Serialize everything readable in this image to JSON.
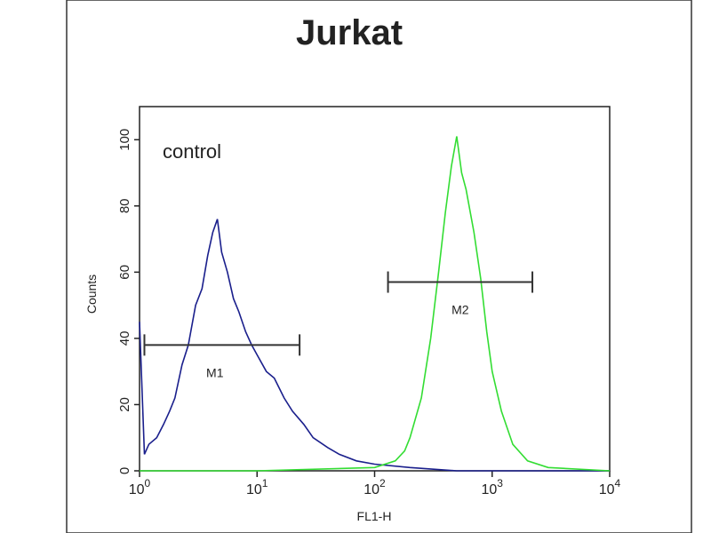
{
  "chart_data": {
    "type": "histogram-overlay",
    "title": "Jurkat",
    "annotation": "control",
    "x_label": "FL1-H",
    "y_label": "Counts",
    "xscale": "log",
    "xlim": [
      1,
      10000
    ],
    "ylim": [
      0,
      110
    ],
    "xticks": [
      {
        "value": 1,
        "label": "10",
        "exponent": "0"
      },
      {
        "value": 10,
        "label": "10",
        "exponent": "1"
      },
      {
        "value": 100,
        "label": "10",
        "exponent": "2"
      },
      {
        "value": 1000,
        "label": "10",
        "exponent": "3"
      },
      {
        "value": 10000,
        "label": "10",
        "exponent": "4"
      }
    ],
    "yticks": [
      0,
      20,
      40,
      60,
      80,
      100
    ],
    "series": [
      {
        "color": "#1a1f8c",
        "x": [
          1,
          1.1,
          1.2,
          1.4,
          1.6,
          1.8,
          2,
          2.3,
          2.6,
          3,
          3.4,
          3.8,
          4.2,
          4.6,
          5,
          5.6,
          6.3,
          7,
          8,
          9,
          10,
          12,
          14,
          17,
          20,
          25,
          30,
          40,
          50,
          70,
          100,
          200,
          500,
          1000,
          10000
        ],
        "values": [
          45,
          5,
          8,
          10,
          14,
          18,
          22,
          32,
          38,
          50,
          55,
          65,
          72,
          76,
          66,
          60,
          52,
          48,
          42,
          38,
          35,
          30,
          28,
          22,
          18,
          14,
          10,
          7,
          5,
          3,
          2,
          1,
          0,
          0,
          0
        ]
      },
      {
        "color": "#33dd33",
        "x": [
          1,
          10,
          100,
          150,
          180,
          200,
          250,
          300,
          350,
          400,
          450,
          500,
          550,
          600,
          700,
          800,
          900,
          1000,
          1200,
          1500,
          2000,
          3000,
          10000
        ],
        "values": [
          0,
          0,
          1,
          3,
          6,
          10,
          22,
          40,
          60,
          78,
          92,
          101,
          90,
          85,
          72,
          58,
          42,
          30,
          18,
          8,
          3,
          1,
          0
        ]
      }
    ],
    "gates": [
      {
        "label": "M1",
        "range": [
          1.1,
          23
        ],
        "y": 38
      },
      {
        "label": "M2",
        "range": [
          130,
          2200
        ],
        "y": 57
      }
    ]
  }
}
